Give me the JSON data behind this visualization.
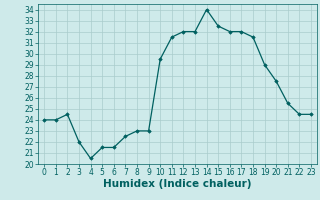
{
  "x": [
    0,
    1,
    2,
    3,
    4,
    5,
    6,
    7,
    8,
    9,
    10,
    11,
    12,
    13,
    14,
    15,
    16,
    17,
    18,
    19,
    20,
    21,
    22,
    23
  ],
  "y": [
    24,
    24,
    24.5,
    22,
    20.5,
    21.5,
    21.5,
    22.5,
    23,
    23,
    29.5,
    31.5,
    32,
    32,
    34,
    32.5,
    32,
    32,
    31.5,
    29,
    27.5,
    25.5,
    24.5,
    24.5
  ],
  "line_color": "#006060",
  "marker": "D",
  "marker_size": 1.8,
  "background_color": "#ceeaea",
  "grid_color": "#aacccc",
  "xlabel": "Humidex (Indice chaleur)",
  "ylim": [
    20,
    34.5
  ],
  "xlim": [
    -0.5,
    23.5
  ],
  "yticks": [
    20,
    21,
    22,
    23,
    24,
    25,
    26,
    27,
    28,
    29,
    30,
    31,
    32,
    33,
    34
  ],
  "xticks": [
    0,
    1,
    2,
    3,
    4,
    5,
    6,
    7,
    8,
    9,
    10,
    11,
    12,
    13,
    14,
    15,
    16,
    17,
    18,
    19,
    20,
    21,
    22,
    23
  ],
  "tick_fontsize": 5.5,
  "xlabel_fontsize": 7.5
}
